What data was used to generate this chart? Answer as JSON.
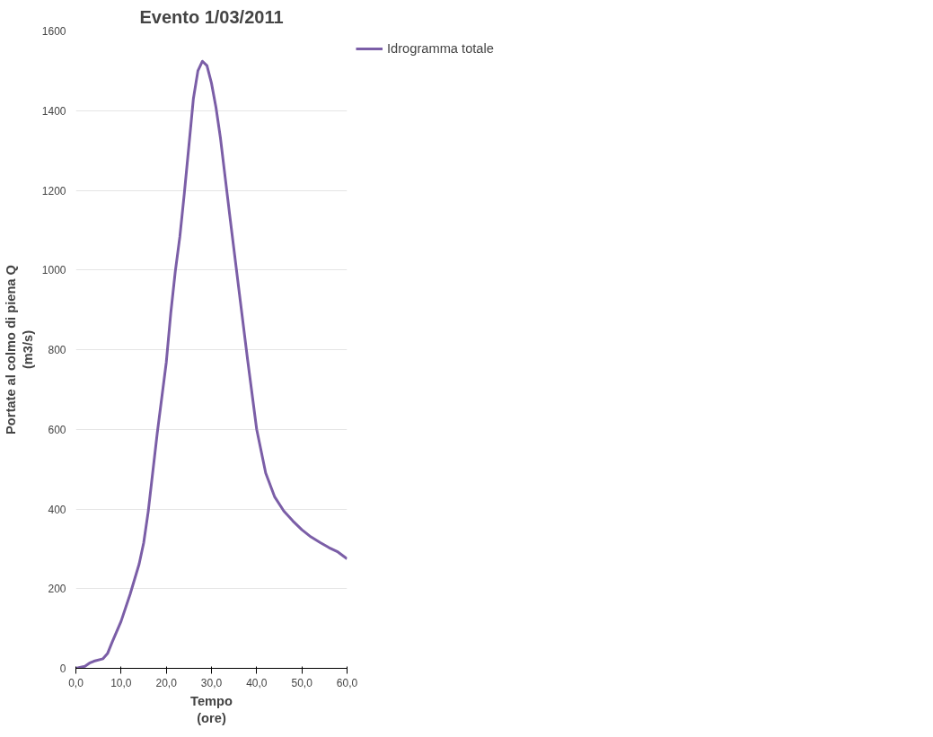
{
  "chart_data": {
    "type": "line",
    "title": "Evento 1/03/2011",
    "xlabel": "Tempo\n(ore)",
    "ylabel": "Portate al colmo di piena Q\n(m3/s)",
    "series": [
      {
        "name": "Idrogramma totale",
        "color": "#7b5ea7",
        "x": [
          0,
          2,
          3,
          4,
          6,
          7,
          8,
          10,
          12,
          14,
          15,
          16,
          18,
          20,
          21,
          22,
          23,
          24,
          25,
          26,
          27,
          28,
          29,
          30,
          31,
          32,
          34,
          36,
          38,
          40,
          42,
          44,
          46,
          48,
          50,
          52,
          54,
          56,
          58,
          60
        ],
        "values": [
          0,
          5,
          13,
          18,
          24,
          37,
          65,
          118,
          186,
          262,
          315,
          393,
          590,
          768,
          892,
          997,
          1083,
          1193,
          1311,
          1430,
          1500,
          1524,
          1513,
          1469,
          1408,
          1330,
          1141,
          957,
          774,
          600,
          490,
          430,
          395,
          370,
          348,
          330,
          316,
          303,
          292,
          275
        ]
      }
    ],
    "xlim": [
      0,
      60
    ],
    "ylim": [
      0,
      1600
    ],
    "xticks": [
      {
        "value": 0,
        "label": "0,0"
      },
      {
        "value": 10,
        "label": "10,0"
      },
      {
        "value": 20,
        "label": "20,0"
      },
      {
        "value": 30,
        "label": "30,0"
      },
      {
        "value": 40,
        "label": "40,0"
      },
      {
        "value": 50,
        "label": "50,0"
      },
      {
        "value": 60,
        "label": "60,0"
      }
    ],
    "yticks": [
      0,
      200,
      400,
      600,
      800,
      1000,
      1200,
      1400,
      1600
    ],
    "grid": "y",
    "legend": "top right",
    "marker": "none",
    "line_style": "solid"
  }
}
